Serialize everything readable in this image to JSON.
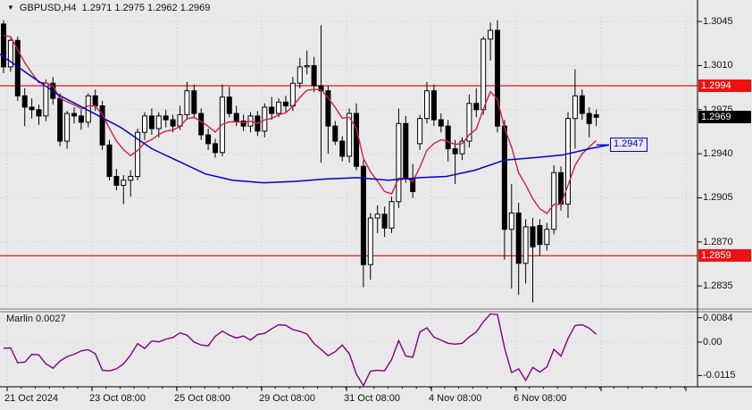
{
  "header": {
    "symbol_period": "GBPUSD,H4",
    "ohlc": "1.2971 1.2975 1.2962 1.2969"
  },
  "price_axis": {
    "ticks": [
      "1.3045",
      "1.3010",
      "1.2975",
      "1.2940",
      "1.2905",
      "1.2870",
      "1.2835"
    ],
    "red_labels": [
      {
        "text": "1.2994",
        "price": 1.2994
      },
      {
        "text": "1.2859",
        "price": 1.2859
      }
    ],
    "current": {
      "text": "1.2969",
      "price": 1.2969
    },
    "ma_tag": {
      "text": "1.2947",
      "price": 1.2947
    }
  },
  "time_axis": {
    "labels": [
      {
        "text": "21 Oct 2024",
        "tick": 0
      },
      {
        "text": "23 Oct 08:00",
        "tick": 1
      },
      {
        "text": "25 Oct 08:00",
        "tick": 2
      },
      {
        "text": "29 Oct 08:00",
        "tick": 3
      },
      {
        "text": "31 Oct 08:00",
        "tick": 4
      },
      {
        "text": "4 Nov 08:00",
        "tick": 5
      },
      {
        "text": "6 Nov 08:00",
        "tick": 6
      }
    ]
  },
  "indicator": {
    "name_label": "Marlin 0.0027",
    "ticks": [
      {
        "text": "0.0084",
        "value": 0.0084
      },
      {
        "text": "0.00",
        "value": 0.0
      },
      {
        "text": "-0.0115",
        "value": -0.0115
      }
    ]
  },
  "colors": {
    "background": "#e9e9e9",
    "grid": "#c6c6c6",
    "frame": "#000000",
    "bull_body": "#ffffff",
    "bear_body": "#000000",
    "wick": "#000000",
    "level_line": "#ee1111",
    "ma_fast": "#cc2244",
    "ma_slow": "#0000cc",
    "indicator_line": "#800080",
    "label_red_bg": "#ee1111",
    "label_black_bg": "#000000",
    "label_text": "#ffffff",
    "ma_tag_color": "#0000cc"
  },
  "chart_data": {
    "type": "candlestick",
    "symbol": "GBPUSD",
    "timeframe": "H4",
    "title": "GBPUSD,H4 1.2971 1.2975 1.2962 1.2969",
    "ylim": [
      1.282,
      1.3052
    ],
    "grid": true,
    "horizontal_levels": [
      1.2994,
      1.2859
    ],
    "candles": [
      [
        1.3043,
        1.3046,
        1.3004,
        1.3009
      ],
      [
        1.3009,
        1.3032,
        1.3005,
        1.303
      ],
      [
        1.303,
        1.3033,
        1.2982,
        1.2986
      ],
      [
        1.2986,
        1.2992,
        1.2962,
        1.2977
      ],
      [
        1.2977,
        1.2984,
        1.2968,
        1.2975
      ],
      [
        1.2975,
        1.2979,
        1.2963,
        1.297
      ],
      [
        1.297,
        1.2999,
        1.2966,
        1.2996
      ],
      [
        1.2996,
        1.3001,
        1.2979,
        1.2984
      ],
      [
        1.2984,
        1.2988,
        1.2946,
        1.295
      ],
      [
        1.295,
        1.2974,
        1.2944,
        1.2972
      ],
      [
        1.2972,
        1.2977,
        1.2964,
        1.297
      ],
      [
        1.297,
        1.2975,
        1.2959,
        1.2965
      ],
      [
        1.2965,
        1.2988,
        1.2961,
        1.2986
      ],
      [
        1.2986,
        1.2991,
        1.2974,
        1.2978
      ],
      [
        1.2978,
        1.2982,
        1.2943,
        1.2947
      ],
      [
        1.2947,
        1.2951,
        1.2919,
        1.2922
      ],
      [
        1.2922,
        1.2928,
        1.2911,
        1.2915
      ],
      [
        1.2915,
        1.2923,
        1.29,
        1.2919
      ],
      [
        1.2919,
        1.2927,
        1.2906,
        1.2922
      ],
      [
        1.2922,
        1.296,
        1.2919,
        1.2957
      ],
      [
        1.2957,
        1.2973,
        1.2951,
        1.297
      ],
      [
        1.297,
        1.2976,
        1.2955,
        1.296
      ],
      [
        1.296,
        1.2973,
        1.2953,
        1.297
      ],
      [
        1.297,
        1.2975,
        1.2961,
        1.2967
      ],
      [
        1.2967,
        1.2971,
        1.2957,
        1.2962
      ],
      [
        1.2962,
        1.2978,
        1.2959,
        1.2971
      ],
      [
        1.2971,
        1.2997,
        1.2967,
        1.299
      ],
      [
        1.299,
        1.2995,
        1.2969,
        1.2972
      ],
      [
        1.2972,
        1.2976,
        1.2951,
        1.2955
      ],
      [
        1.2955,
        1.296,
        1.2943,
        1.2948
      ],
      [
        1.2948,
        1.2952,
        1.2937,
        1.2941
      ],
      [
        1.2941,
        1.2995,
        1.2938,
        1.2985
      ],
      [
        1.2985,
        1.2993,
        1.2969,
        1.2972
      ],
      [
        1.2972,
        1.2978,
        1.2962,
        1.2966
      ],
      [
        1.2966,
        1.2971,
        1.2958,
        1.2962
      ],
      [
        1.2962,
        1.2973,
        1.2957,
        1.297
      ],
      [
        1.297,
        1.2974,
        1.2954,
        1.2958
      ],
      [
        1.2958,
        1.298,
        1.2953,
        1.2977
      ],
      [
        1.2977,
        1.2985,
        1.2967,
        1.2972
      ],
      [
        1.2972,
        1.2984,
        1.2969,
        1.2981
      ],
      [
        1.2981,
        1.2986,
        1.2973,
        1.2978
      ],
      [
        1.2978,
        1.3001,
        1.2974,
        1.2996
      ],
      [
        1.2996,
        1.3016,
        1.2992,
        1.3009
      ],
      [
        1.3009,
        1.3022,
        1.3003,
        1.301
      ],
      [
        1.301,
        1.3017,
        1.2989,
        1.2994
      ],
      [
        1.2994,
        1.3042,
        1.2933,
        1.299
      ],
      [
        1.299,
        1.2994,
        1.294,
        1.2962
      ],
      [
        1.2962,
        1.2966,
        1.2947,
        1.295
      ],
      [
        1.295,
        1.2954,
        1.2934,
        1.2938
      ],
      [
        1.2938,
        1.2976,
        1.2933,
        1.2972
      ],
      [
        1.2972,
        1.298,
        1.2927,
        1.293
      ],
      [
        1.293,
        1.2935,
        1.2834,
        1.2852
      ],
      [
        1.2852,
        1.2893,
        1.284,
        1.2889
      ],
      [
        1.2889,
        1.2899,
        1.2877,
        1.2892
      ],
      [
        1.2892,
        1.2898,
        1.2874,
        1.2881
      ],
      [
        1.2881,
        1.2906,
        1.2877,
        1.2902
      ],
      [
        1.2902,
        1.2976,
        1.2897,
        1.2964
      ],
      [
        1.2964,
        1.297,
        1.2917,
        1.292
      ],
      [
        1.292,
        1.2932,
        1.2905,
        1.291
      ],
      [
        1.2948,
        1.2971,
        1.2943,
        1.2968
      ],
      [
        1.2968,
        1.2997,
        1.2964,
        1.299
      ],
      [
        1.299,
        1.2995,
        1.2962,
        1.2967
      ],
      [
        1.2967,
        1.2972,
        1.2957,
        1.2962
      ],
      [
        1.2962,
        1.2967,
        1.2934,
        1.2944
      ],
      [
        1.2944,
        1.2951,
        1.2916,
        1.294
      ],
      [
        1.294,
        1.2953,
        1.2935,
        1.295
      ],
      [
        1.295,
        1.2987,
        1.2945,
        1.298
      ],
      [
        1.298,
        1.2992,
        1.2969,
        1.2975
      ],
      [
        1.2975,
        1.3033,
        1.2971,
        1.3031
      ],
      [
        1.3031,
        1.3044,
        1.3014,
        1.3038
      ],
      [
        1.3038,
        1.3046,
        1.2957,
        1.2962
      ],
      [
        1.2962,
        1.2967,
        1.2856,
        1.288
      ],
      [
        1.288,
        1.2916,
        1.2833,
        1.2893
      ],
      [
        1.2893,
        1.2901,
        1.2828,
        1.2853
      ],
      [
        1.2853,
        1.2888,
        1.2837,
        1.2882
      ],
      [
        1.2882,
        1.2889,
        1.2822,
        1.2866
      ],
      [
        1.2883,
        1.2888,
        1.2859,
        1.2868
      ],
      [
        1.2868,
        1.2885,
        1.2863,
        1.288
      ],
      [
        1.288,
        1.2931,
        1.2876,
        1.2925
      ],
      [
        1.2925,
        1.293,
        1.2895,
        1.29
      ],
      [
        1.29,
        1.2973,
        1.2889,
        1.2968
      ],
      [
        1.2968,
        1.3007,
        1.2944,
        1.2986
      ],
      [
        1.2986,
        1.2991,
        1.2967,
        1.2972
      ],
      [
        1.2972,
        1.2977,
        1.2953,
        1.2964
      ],
      [
        1.2971,
        1.2975,
        1.2962,
        1.2969
      ]
    ],
    "ma_fast": {
      "type": "ema",
      "period": 8,
      "seed": 1.3041
    },
    "ma_slow_points": [
      [
        0,
        1.3019
      ],
      [
        30,
        1.3004
      ],
      [
        65,
        1.2987
      ],
      [
        100,
        1.2974
      ],
      [
        135,
        1.2961
      ],
      [
        170,
        1.2944
      ],
      [
        200,
        1.2934
      ],
      [
        230,
        1.2924
      ],
      [
        260,
        1.2919
      ],
      [
        295,
        1.2917
      ],
      [
        330,
        1.2918
      ],
      [
        365,
        1.292
      ],
      [
        400,
        1.2921
      ],
      [
        435,
        1.2919
      ],
      [
        470,
        1.2921
      ],
      [
        500,
        1.2922
      ],
      [
        532,
        1.2927
      ],
      [
        565,
        1.2935
      ],
      [
        600,
        1.2937
      ],
      [
        630,
        1.2939
      ],
      [
        660,
        1.2944
      ],
      [
        682,
        1.2947
      ]
    ],
    "sub_indicator": {
      "name": "Marlin",
      "last_value": 0.0027,
      "values": [
        -0.0021,
        -0.002,
        -0.0071,
        -0.0069,
        -0.0042,
        -0.0044,
        -0.0075,
        -0.009,
        -0.0065,
        -0.005,
        -0.0042,
        -0.003,
        -0.0026,
        -0.004,
        -0.0097,
        -0.0099,
        -0.0092,
        -0.0075,
        -0.0045,
        -0.0005,
        -0.0022,
        0.0004,
        0.0001,
        0.001,
        0.0016,
        0.0032,
        0.0024,
        0.0,
        -0.001,
        -0.0013,
        0.002,
        0.0038,
        0.0024,
        0.0014,
        0.0021,
        0.0007,
        0.0026,
        0.003,
        0.0046,
        0.006,
        0.0058,
        0.0043,
        0.0037,
        0.0028,
        -0.0005,
        -0.0025,
        -0.0047,
        -0.0033,
        -0.001,
        -0.004,
        -0.011,
        -0.015,
        -0.01,
        -0.0097,
        -0.0099,
        -0.006,
        0.0005,
        -0.0048,
        -0.0052,
        0.0035,
        0.0049,
        0.0017,
        0.0007,
        -0.0004,
        -0.0007,
        -0.0004,
        0.0018,
        0.0035,
        0.007,
        0.0097,
        0.0095,
        -0.002,
        -0.0105,
        -0.0092,
        -0.0132,
        -0.0087,
        -0.0103,
        -0.0086,
        -0.0025,
        -0.0048,
        0.0012,
        0.0057,
        0.006,
        0.0048,
        0.0027
      ]
    }
  }
}
